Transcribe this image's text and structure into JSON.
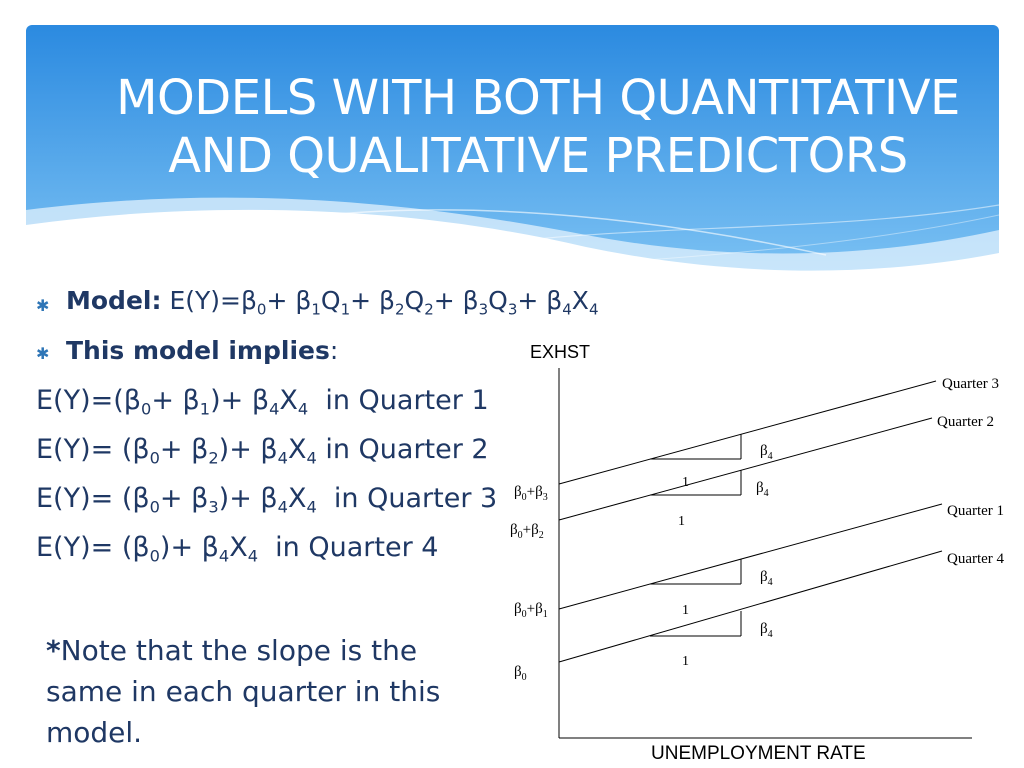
{
  "header": {
    "title_line1": "MODELS WITH BOTH QUANTITATIVE",
    "title_line2": "AND QUALITATIVE PREDICTORS",
    "gradient_top": "#2f8fe0",
    "gradient_bottom": "#7cc2f3"
  },
  "bullets": [
    {
      "label": "Model:",
      "text_html": "E(Y)=β<sub>0</sub>+ β<sub>1</sub>Q<sub>1</sub>+ β<sub>2</sub>Q<sub>2</sub>+ β<sub>3</sub>Q<sub>3</sub>+ β<sub>4</sub>X<sub>4</sub>"
    },
    {
      "label": "This model implies",
      "text_html": ":"
    }
  ],
  "equations": [
    "E(Y)=(β<sub>0</sub>+ β<sub>1</sub>)+ β<sub>4</sub>X<sub>4</sub>&nbsp; in Quarter 1",
    "E(Y)= (β<sub>0</sub>+ β<sub>2</sub>)+ β<sub>4</sub>X<sub>4</sub> in Quarter 2",
    "E(Y)= (β<sub>0</sub>+ β<sub>3</sub>)+ β<sub>4</sub>X<sub>4</sub>&nbsp; in Quarter 3",
    "E(Y)= (β<sub>0</sub>)+ β<sub>4</sub>X<sub>4</sub>&nbsp; in Quarter 4"
  ],
  "note": {
    "star": "*",
    "text": "Note that the slope is the same in each quarter in this model."
  },
  "diagram": {
    "y_axis_label": "EXHST",
    "x_axis_label": "UNEMPLOYMENT RATE",
    "lines": [
      {
        "name": "Quarter 3",
        "intercept_label": "β0+β3"
      },
      {
        "name": "Quarter 2",
        "intercept_label": "β0+β2"
      },
      {
        "name": "Quarter 1",
        "intercept_label": "β0+β1"
      },
      {
        "name": "Quarter 4",
        "intercept_label": "β0"
      }
    ],
    "slope_label": "β4",
    "run_label": "1"
  },
  "colors": {
    "text": "#1f3864",
    "bullet": "#2e75b6",
    "line": "#000000"
  }
}
